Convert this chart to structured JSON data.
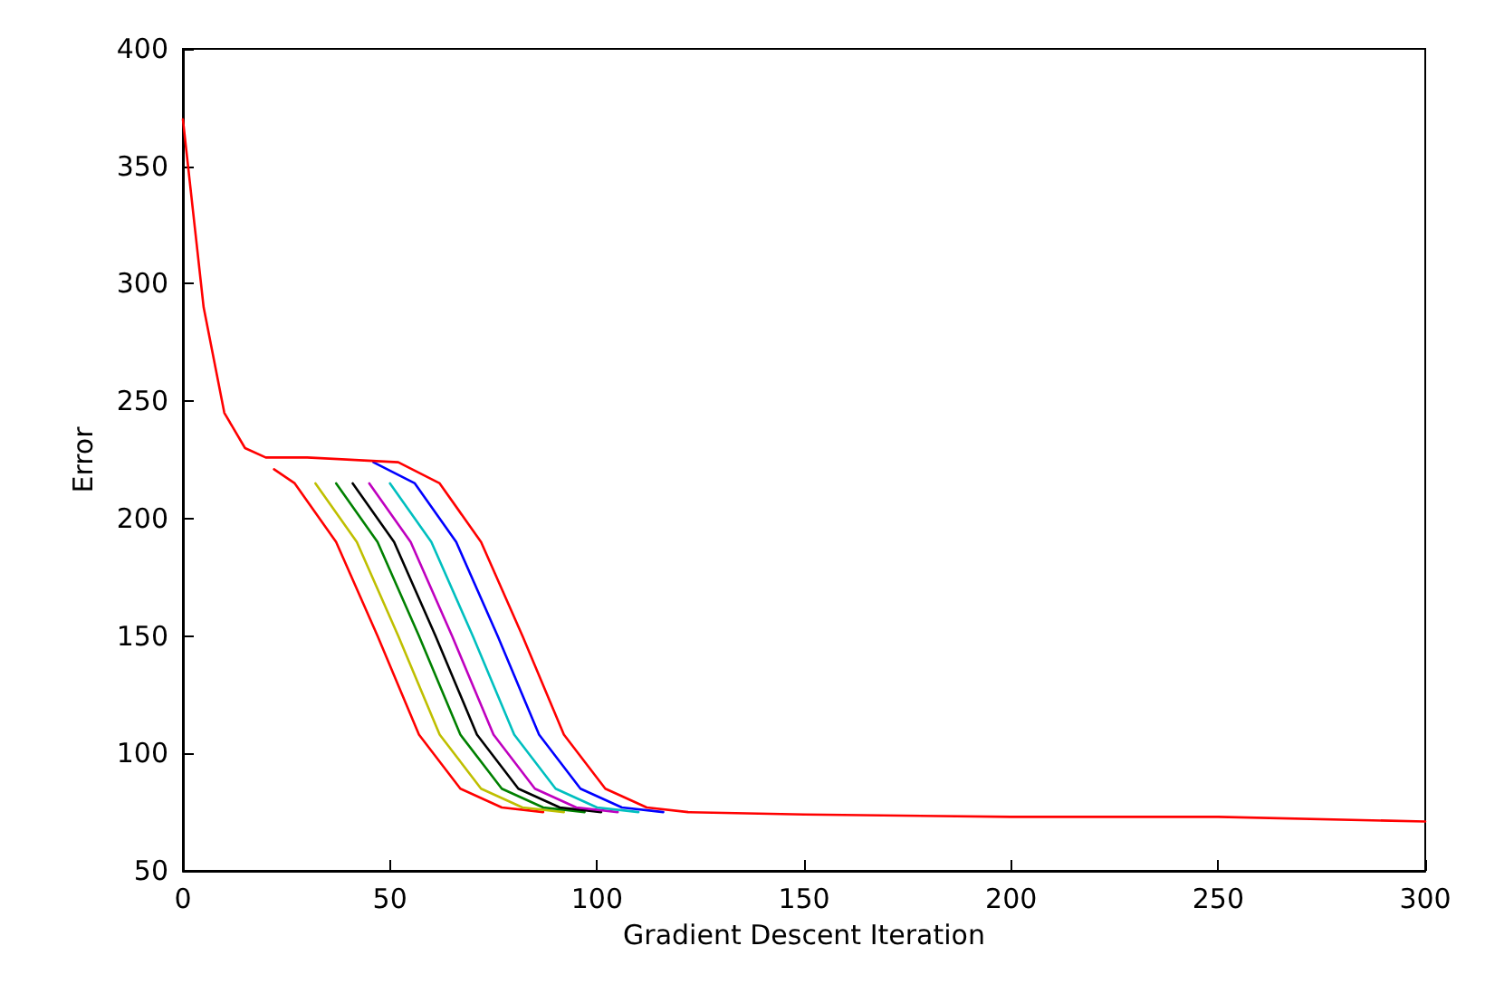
{
  "chart_data": {
    "type": "line",
    "xlabel": "Gradient Descent Iteration",
    "ylabel": "Error",
    "xlim": [
      0,
      300
    ],
    "ylim": [
      50,
      400
    ],
    "xticks": [
      0,
      50,
      100,
      150,
      200,
      250,
      300
    ],
    "yticks": [
      50,
      100,
      150,
      200,
      250,
      300,
      350,
      400
    ],
    "grid": false,
    "marker": "none",
    "line_style": "solid",
    "series": [
      {
        "color": "#ff0000",
        "x": [
          22,
          27,
          37,
          47,
          57,
          67,
          77,
          87
        ],
        "values": [
          221,
          215,
          190,
          150,
          108,
          85,
          77,
          75
        ]
      },
      {
        "color": "#bfbf00",
        "x": [
          32,
          42,
          52,
          62,
          72,
          82,
          92
        ],
        "values": [
          215,
          190,
          150,
          108,
          85,
          77,
          75
        ]
      },
      {
        "color": "#008000",
        "x": [
          37,
          47,
          57,
          67,
          77,
          87,
          97
        ],
        "values": [
          215,
          190,
          150,
          108,
          85,
          77,
          75
        ]
      },
      {
        "color": "#000000",
        "x": [
          41,
          51,
          61,
          71,
          81,
          91,
          101
        ],
        "values": [
          215,
          190,
          150,
          108,
          85,
          77,
          75
        ]
      },
      {
        "color": "#bf00bf",
        "x": [
          45,
          55,
          65,
          75,
          85,
          95,
          105
        ],
        "values": [
          215,
          190,
          150,
          108,
          85,
          77,
          75
        ]
      },
      {
        "color": "#00bfbf",
        "x": [
          50,
          60,
          70,
          80,
          90,
          100,
          110
        ],
        "values": [
          215,
          190,
          150,
          108,
          85,
          77,
          75
        ]
      },
      {
        "color": "#0000ff",
        "x": [
          46,
          56,
          66,
          76,
          86,
          96,
          106,
          116
        ],
        "values": [
          224,
          215,
          190,
          150,
          108,
          85,
          77,
          75
        ]
      },
      {
        "color": "#ff0000",
        "x": [
          0,
          5,
          10,
          15,
          20,
          30,
          52,
          62,
          72,
          82,
          92,
          102,
          112,
          122,
          150,
          200,
          250,
          300
        ],
        "values": [
          370,
          290,
          245,
          230,
          226,
          226,
          224,
          215,
          190,
          150,
          108,
          85,
          77,
          75,
          74,
          73,
          73,
          71
        ]
      }
    ]
  }
}
